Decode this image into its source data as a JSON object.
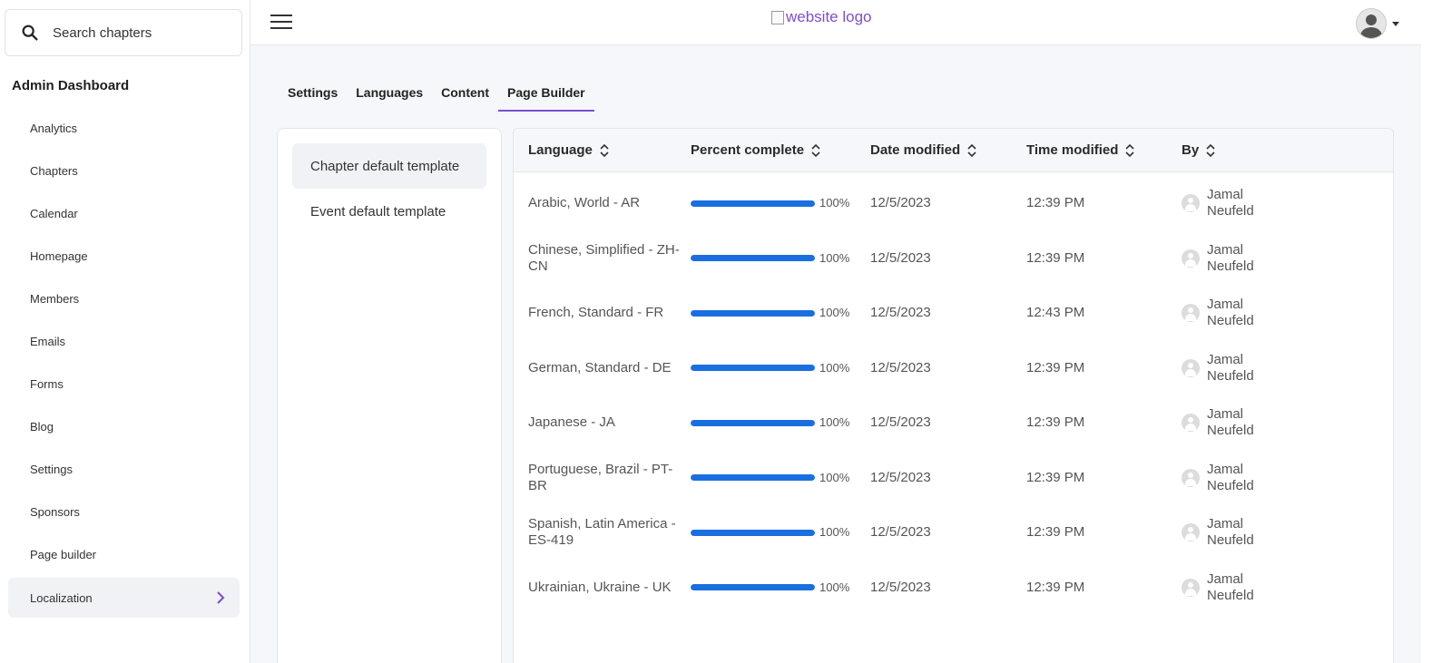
{
  "sidebar": {
    "search_placeholder": "Search chapters",
    "title": "Admin Dashboard",
    "items": [
      {
        "label": "Analytics"
      },
      {
        "label": "Chapters"
      },
      {
        "label": "Calendar"
      },
      {
        "label": "Homepage"
      },
      {
        "label": "Members"
      },
      {
        "label": "Emails"
      },
      {
        "label": "Forms"
      },
      {
        "label": "Blog"
      },
      {
        "label": "Settings"
      },
      {
        "label": "Sponsors"
      },
      {
        "label": "Page builder"
      },
      {
        "label": "Localization",
        "active": true
      }
    ]
  },
  "header": {
    "logo_alt": "website logo"
  },
  "tabs": [
    {
      "label": "Settings"
    },
    {
      "label": "Languages"
    },
    {
      "label": "Content"
    },
    {
      "label": "Page Builder",
      "active": true
    }
  ],
  "templates": [
    {
      "label": "Chapter default template",
      "active": true
    },
    {
      "label": "Event default template"
    }
  ],
  "table": {
    "columns": [
      "Language",
      "Percent complete",
      "Date modified",
      "Time modified",
      "By"
    ],
    "rows": [
      {
        "language": "Arabic, World - AR",
        "percent": 100,
        "percent_label": "100%",
        "date": "12/5/2023",
        "time": "12:39 PM",
        "by": "Jamal Neufeld"
      },
      {
        "language": "Chinese, Simplified - ZH-CN",
        "percent": 100,
        "percent_label": "100%",
        "date": "12/5/2023",
        "time": "12:39 PM",
        "by": "Jamal Neufeld"
      },
      {
        "language": "French, Standard - FR",
        "percent": 100,
        "percent_label": "100%",
        "date": "12/5/2023",
        "time": "12:43 PM",
        "by": "Jamal Neufeld"
      },
      {
        "language": "German, Standard - DE",
        "percent": 100,
        "percent_label": "100%",
        "date": "12/5/2023",
        "time": "12:39 PM",
        "by": "Jamal Neufeld"
      },
      {
        "language": "Japanese - JA",
        "percent": 100,
        "percent_label": "100%",
        "date": "12/5/2023",
        "time": "12:39 PM",
        "by": "Jamal Neufeld"
      },
      {
        "language": "Portuguese, Brazil - PT-BR",
        "percent": 100,
        "percent_label": "100%",
        "date": "12/5/2023",
        "time": "12:39 PM",
        "by": "Jamal Neufeld"
      },
      {
        "language": "Spanish, Latin America - ES-419",
        "percent": 100,
        "percent_label": "100%",
        "date": "12/5/2023",
        "time": "12:39 PM",
        "by": "Jamal Neufeld"
      },
      {
        "language": "Ukrainian, Ukraine - UK",
        "percent": 100,
        "percent_label": "100%",
        "date": "12/5/2023",
        "time": "12:39 PM",
        "by": "Jamal Neufeld"
      }
    ]
  },
  "colors": {
    "accent": "#7a4fd0",
    "progress": "#1a6fe0"
  }
}
